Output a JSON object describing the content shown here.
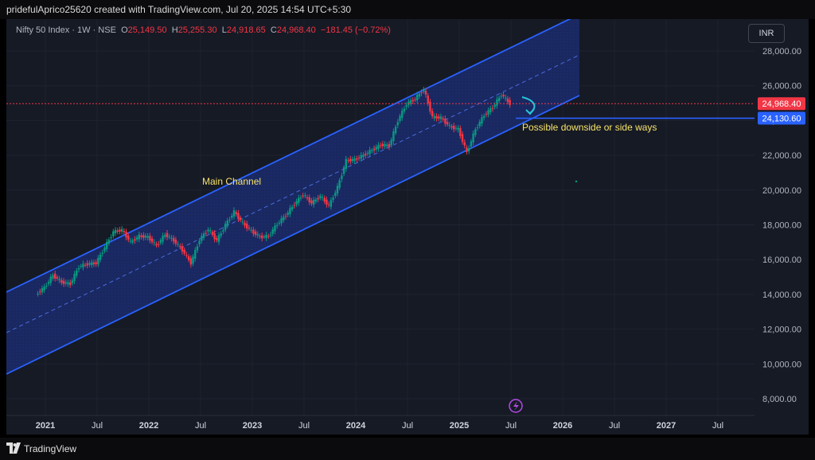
{
  "header": {
    "text": "pridefulAprico25620 created with TradingView.com, Jul 20, 2025 14:54 UTC+5:30"
  },
  "legend": {
    "symbol": "Nifty 50 Index · 1W · NSE",
    "o_label": "O",
    "o": "25,149.50",
    "h_label": "H",
    "h": "25,255.30",
    "l_label": "L",
    "l": "24,918.65",
    "c_label": "C",
    "c": "24,968.40",
    "chg": "−181.45 (−0.72%)"
  },
  "currency_button": "INR",
  "footer": {
    "brand": "TradingView"
  },
  "colors": {
    "up": "#089981",
    "down": "#f23645",
    "channel": "#2962ff",
    "annotation": "#f7e36a",
    "bg": "#161a25"
  },
  "chart_data": {
    "type": "line",
    "title": "",
    "yticks": [
      "8,000.00",
      "10,000.00",
      "12,000.00",
      "14,000.00",
      "16,000.00",
      "18,000.00",
      "20,000.00",
      "22,000.00",
      "24,000.00",
      "26,000.00",
      "28,000.00"
    ],
    "xticks": [
      "2021",
      "Jul",
      "2022",
      "Jul",
      "2023",
      "Jul",
      "2024",
      "Jul",
      "2025",
      "Jul",
      "2026",
      "Jul",
      "2027",
      "Jul"
    ],
    "ylim": [
      7200,
      29000
    ],
    "series": [
      {
        "values": [
          [
            "2020-12",
            13980
          ],
          [
            "2021-01",
            14400
          ],
          [
            "2021-02",
            15100
          ],
          [
            "2021-03",
            14700
          ],
          [
            "2021-04",
            14600
          ],
          [
            "2021-05",
            15600
          ],
          [
            "2021-06",
            15750
          ],
          [
            "2021-07",
            15800
          ],
          [
            "2021-08",
            16700
          ],
          [
            "2021-09",
            17600
          ],
          [
            "2021-10",
            17700
          ],
          [
            "2021-11",
            17000
          ],
          [
            "2021-12",
            17350
          ],
          [
            "2022-01",
            17300
          ],
          [
            "2022-02",
            16800
          ],
          [
            "2022-03",
            17450
          ],
          [
            "2022-04",
            17100
          ],
          [
            "2022-05",
            16550
          ],
          [
            "2022-06",
            15800
          ],
          [
            "2022-07",
            17150
          ],
          [
            "2022-08",
            17750
          ],
          [
            "2022-09",
            17100
          ],
          [
            "2022-10",
            18000
          ],
          [
            "2022-11",
            18750
          ],
          [
            "2022-12",
            18100
          ],
          [
            "2023-01",
            17650
          ],
          [
            "2023-02",
            17300
          ],
          [
            "2023-03",
            17350
          ],
          [
            "2023-04",
            18050
          ],
          [
            "2023-05",
            18550
          ],
          [
            "2023-06",
            19200
          ],
          [
            "2023-07",
            19750
          ],
          [
            "2023-08",
            19250
          ],
          [
            "2023-09",
            19650
          ],
          [
            "2023-10",
            19100
          ],
          [
            "2023-11",
            20150
          ],
          [
            "2023-12",
            21700
          ],
          [
            "2024-01",
            21750
          ],
          [
            "2024-02",
            22000
          ],
          [
            "2024-03",
            22300
          ],
          [
            "2024-04",
            22600
          ],
          [
            "2024-05",
            22550
          ],
          [
            "2024-06",
            24000
          ],
          [
            "2024-07",
            24950
          ],
          [
            "2024-08",
            25250
          ],
          [
            "2024-09",
            25800
          ],
          [
            "2024-10",
            24200
          ],
          [
            "2024-11",
            24150
          ],
          [
            "2024-12",
            23650
          ],
          [
            "2025-01",
            23500
          ],
          [
            "2025-02",
            22150
          ],
          [
            "2025-03",
            23500
          ],
          [
            "2025-04",
            24300
          ],
          [
            "2025-05",
            24750
          ],
          [
            "2025-06",
            25500
          ],
          [
            "2025-07",
            24968
          ]
        ]
      }
    ],
    "price_labels": [
      {
        "value": 24968.4,
        "text": "24,968.40"
      },
      {
        "value": 24130.6,
        "text": "24,130.60"
      }
    ],
    "annotations": [
      "Main Channel",
      "Possible downside or side ways"
    ]
  }
}
